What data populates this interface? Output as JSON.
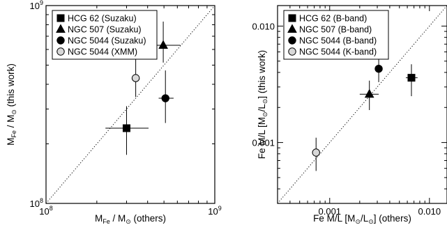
{
  "chart_data": [
    {
      "type": "scatter",
      "title": "",
      "xscale": "log",
      "yscale": "log",
      "xlim": [
        100000000,
        1000000000
      ],
      "ylim": [
        100000000,
        1000000000
      ],
      "xlabel": "M_Fe / M_⊙ (others)",
      "ylabel": "M_Fe / M_⊙ (this work)",
      "x_tick_labels": [
        {
          "value": 100000000,
          "base": "10",
          "exp": "8"
        },
        {
          "value": 1000000000,
          "base": "10",
          "exp": "9"
        }
      ],
      "y_tick_labels": [
        {
          "value": 100000000,
          "base": "10",
          "exp": "8"
        },
        {
          "value": 1000000000,
          "base": "10",
          "exp": "9"
        }
      ],
      "one_to_one_line": true,
      "legend_position": "top-left",
      "series": [
        {
          "name": "HCG 62 (Suzaku)",
          "marker": "square",
          "color": "#000000",
          "points": [
            {
              "x": 300000000,
              "y": 240000000,
              "xerr": [
                225000000,
                405000000
              ],
              "yerr": [
                176000000,
                310000000
              ]
            }
          ]
        },
        {
          "name": "NGC 507 (Suzaku)",
          "marker": "triangle",
          "color": "#000000",
          "points": [
            {
              "x": 495000000,
              "y": 630000000,
              "xerr": [
                425000000,
                625000000
              ],
              "yerr": [
                515000000,
                830000000
              ]
            }
          ]
        },
        {
          "name": "NGC 5044 (Suzaku)",
          "marker": "circle",
          "color": "#000000",
          "points": [
            {
              "x": 510000000,
              "y": 340000000,
              "xerr": [
                465000000,
                570000000
              ],
              "yerr": [
                255000000,
                470000000
              ]
            }
          ]
        },
        {
          "name": "NGC 5044 (XMM)",
          "marker": "circle",
          "color": "#d8d8d8",
          "points": [
            {
              "x": 340000000,
              "y": 430000000,
              "xerr": [
                322000000,
                358000000
              ],
              "yerr": [
                345000000,
                540000000
              ]
            }
          ]
        }
      ]
    },
    {
      "type": "scatter",
      "title": "",
      "xscale": "log",
      "yscale": "log",
      "xlim": [
        0.0003,
        0.015
      ],
      "ylim": [
        0.0003,
        0.015
      ],
      "xlabel": "Fe M/L [M_⊙/L_⊙] (others)",
      "ylabel": "Fe M/L [M_⊙/L_⊙] (this work)",
      "x_tick_labels": [
        {
          "value": 0.001,
          "text": "0.001"
        },
        {
          "value": 0.01,
          "text": "0.010"
        }
      ],
      "y_tick_labels": [
        {
          "value": 0.001,
          "text": "0.001"
        },
        {
          "value": 0.01,
          "text": "0.010"
        }
      ],
      "one_to_one_line": true,
      "legend_position": "top-left",
      "series": [
        {
          "name": "HCG 62 (B-band)",
          "marker": "square",
          "color": "#000000",
          "points": [
            {
              "x": 0.0066,
              "y": 0.0036,
              "xerr": [
                0.0058,
                0.0076
              ],
              "yerr": [
                0.0025,
                0.0047
              ]
            }
          ]
        },
        {
          "name": "NGC 507 (B-band)",
          "marker": "triangle",
          "color": "#000000",
          "points": [
            {
              "x": 0.0025,
              "y": 0.0026,
              "xerr": [
                0.002,
                0.0031
              ],
              "yerr": [
                0.0019,
                0.0034
              ]
            }
          ]
        },
        {
          "name": "NGC 5044 (B-band)",
          "marker": "circle",
          "color": "#000000",
          "points": [
            {
              "x": 0.0031,
              "y": 0.0043,
              "xerr": [
                0.0029,
                0.0033
              ],
              "yerr": [
                0.0033,
                0.0056
              ]
            }
          ]
        },
        {
          "name": "NGC 5044 (K-band)",
          "marker": "circle",
          "color": "#d8d8d8",
          "points": [
            {
              "x": 0.00073,
              "y": 0.00082,
              "xerr": [
                0.00069,
                0.00077
              ],
              "yerr": [
                0.00057,
                0.0011
              ]
            }
          ]
        }
      ]
    }
  ]
}
